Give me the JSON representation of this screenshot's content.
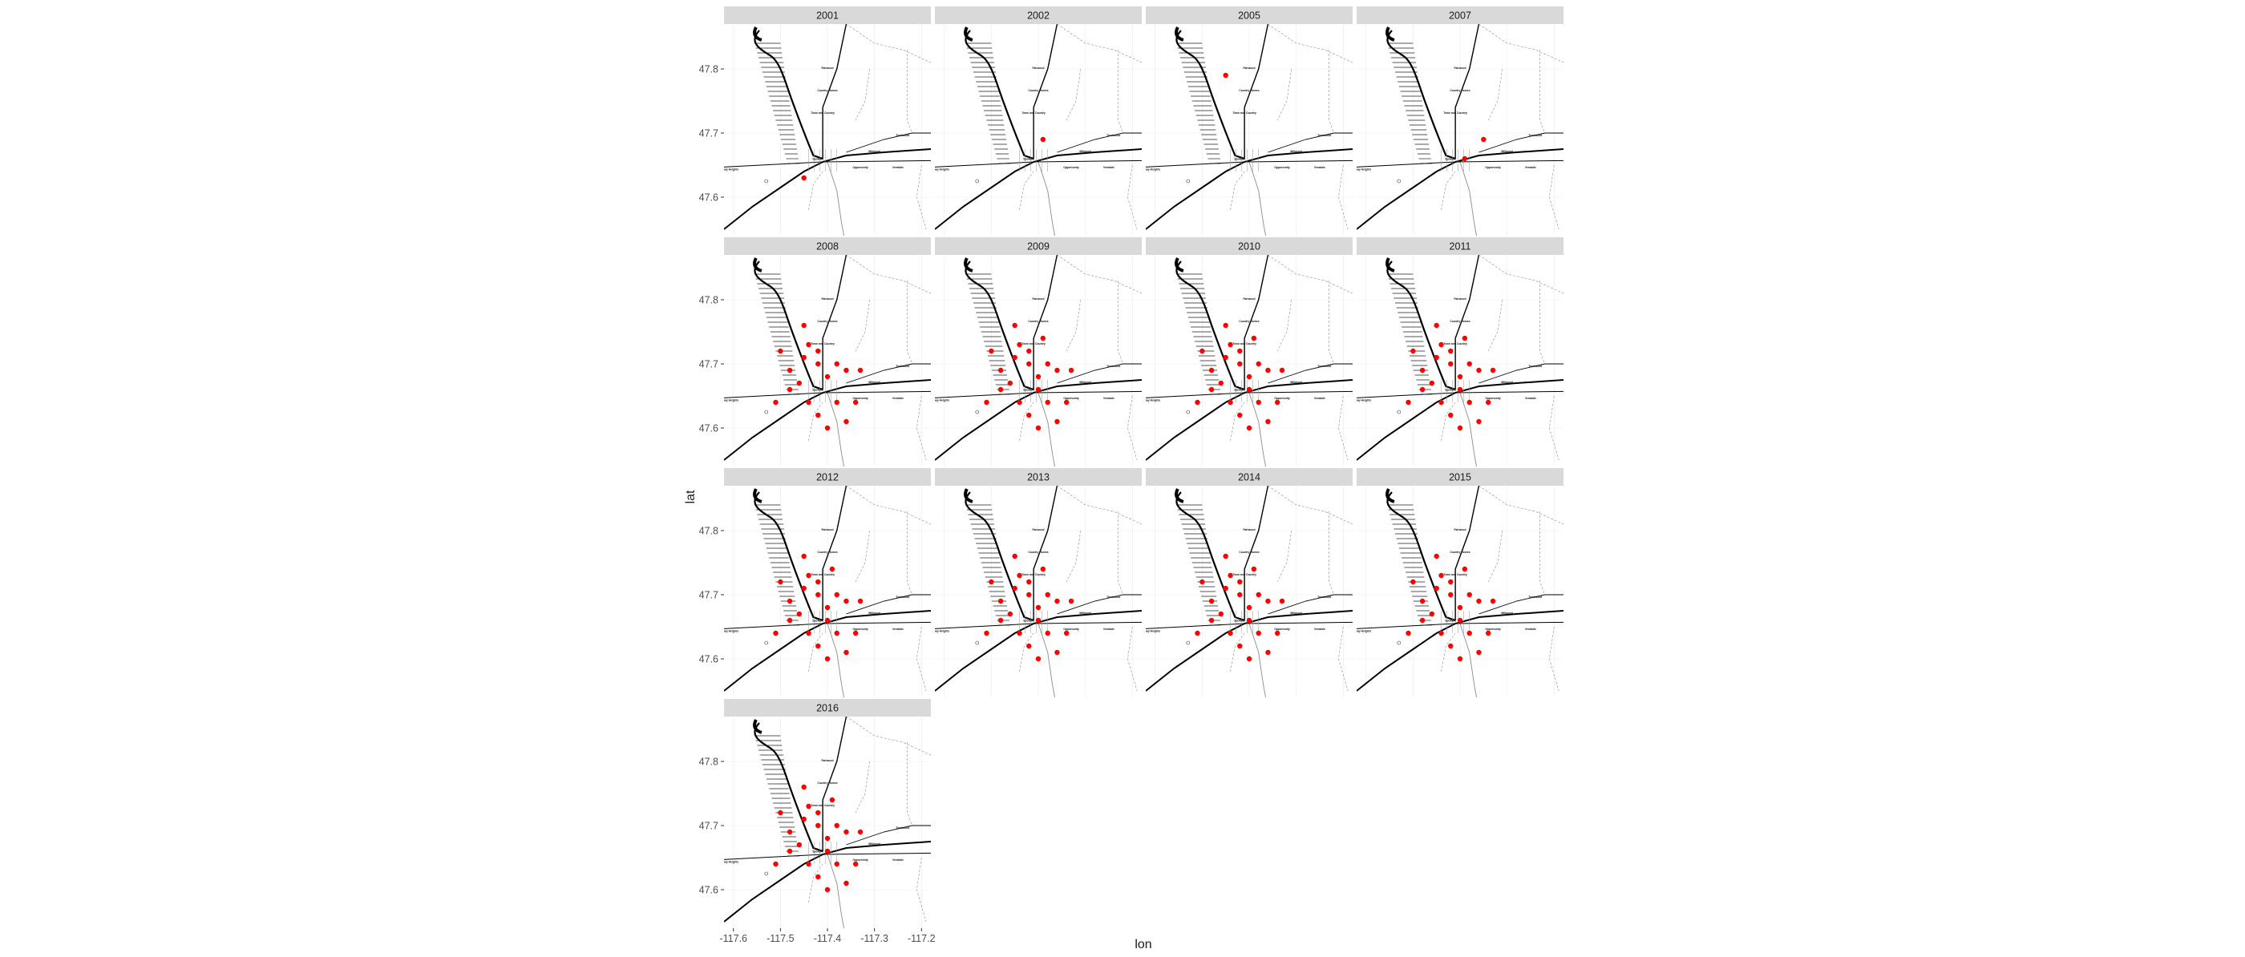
{
  "figure": {
    "xlabel": "lon",
    "ylabel": "lat",
    "x_ticks": [
      "-117.6",
      "-117.5",
      "-117.4",
      "-117.3",
      "-117.2"
    ],
    "y_ticks": [
      "47.8",
      "47.7",
      "47.6"
    ]
  },
  "colors": {
    "point": "#ff0000",
    "strip": "#d9d9d9",
    "strip_text": "#1a1a1a",
    "axis_text": "#4d4d4d",
    "road": "#000000",
    "minor_road": "#8c8c8c"
  },
  "map_labels": [
    "Fairwood",
    "Country Homes",
    "Town and Country",
    "Millwood",
    "Trentwood",
    "Spokane",
    "Opportunity",
    "Veradale",
    "Airway Heights"
  ],
  "chart_data": {
    "type": "scatter",
    "subtype": "faceted map",
    "xlabel": "lon",
    "ylabel": "lat",
    "xlim": [
      -117.62,
      -117.18
    ],
    "ylim": [
      47.54,
      47.87
    ],
    "x_ticks": [
      -117.6,
      -117.5,
      -117.4,
      -117.3,
      -117.2
    ],
    "y_ticks": [
      47.8,
      47.7,
      47.6
    ],
    "facets": [
      {
        "label": "2001",
        "points": [
          [
            -117.45,
            47.63
          ]
        ]
      },
      {
        "label": "2002",
        "points": [
          [
            -117.39,
            47.69
          ]
        ]
      },
      {
        "label": "2005",
        "points": [
          [
            -117.45,
            47.79
          ]
        ]
      },
      {
        "label": "2007",
        "points": [
          [
            -117.39,
            47.66
          ],
          [
            -117.35,
            47.69
          ]
        ]
      },
      {
        "label": "2008",
        "points": [
          [
            -117.51,
            47.64
          ],
          [
            -117.45,
            47.71
          ],
          [
            -117.42,
            47.72
          ],
          [
            -117.45,
            47.76
          ],
          [
            -117.5,
            47.72
          ],
          [
            -117.48,
            47.69
          ],
          [
            -117.46,
            47.67
          ],
          [
            -117.44,
            47.64
          ],
          [
            -117.42,
            47.7
          ],
          [
            -117.4,
            47.68
          ],
          [
            -117.38,
            47.7
          ],
          [
            -117.36,
            47.69
          ],
          [
            -117.33,
            47.69
          ],
          [
            -117.42,
            47.62
          ],
          [
            -117.38,
            47.64
          ],
          [
            -117.34,
            47.64
          ],
          [
            -117.4,
            47.6
          ],
          [
            -117.36,
            47.61
          ],
          [
            -117.48,
            47.66
          ],
          [
            -117.44,
            47.73
          ]
        ]
      },
      {
        "label": "2009",
        "points": [
          [
            -117.51,
            47.64
          ],
          [
            -117.45,
            47.71
          ],
          [
            -117.42,
            47.72
          ],
          [
            -117.45,
            47.76
          ],
          [
            -117.5,
            47.72
          ],
          [
            -117.48,
            47.69
          ],
          [
            -117.46,
            47.67
          ],
          [
            -117.44,
            47.64
          ],
          [
            -117.42,
            47.7
          ],
          [
            -117.4,
            47.68
          ],
          [
            -117.38,
            47.7
          ],
          [
            -117.36,
            47.69
          ],
          [
            -117.33,
            47.69
          ],
          [
            -117.42,
            47.62
          ],
          [
            -117.38,
            47.64
          ],
          [
            -117.34,
            47.64
          ],
          [
            -117.4,
            47.6
          ],
          [
            -117.36,
            47.61
          ],
          [
            -117.48,
            47.66
          ],
          [
            -117.44,
            47.73
          ],
          [
            -117.39,
            47.74
          ],
          [
            -117.4,
            47.66
          ]
        ]
      },
      {
        "label": "2010",
        "points": [
          [
            -117.51,
            47.64
          ],
          [
            -117.45,
            47.71
          ],
          [
            -117.42,
            47.72
          ],
          [
            -117.45,
            47.76
          ],
          [
            -117.5,
            47.72
          ],
          [
            -117.48,
            47.69
          ],
          [
            -117.46,
            47.67
          ],
          [
            -117.44,
            47.64
          ],
          [
            -117.42,
            47.7
          ],
          [
            -117.4,
            47.68
          ],
          [
            -117.38,
            47.7
          ],
          [
            -117.36,
            47.69
          ],
          [
            -117.33,
            47.69
          ],
          [
            -117.42,
            47.62
          ],
          [
            -117.38,
            47.64
          ],
          [
            -117.34,
            47.64
          ],
          [
            -117.4,
            47.6
          ],
          [
            -117.36,
            47.61
          ],
          [
            -117.48,
            47.66
          ],
          [
            -117.44,
            47.73
          ],
          [
            -117.39,
            47.74
          ],
          [
            -117.4,
            47.66
          ]
        ]
      },
      {
        "label": "2011",
        "points": [
          [
            -117.51,
            47.64
          ],
          [
            -117.45,
            47.71
          ],
          [
            -117.42,
            47.72
          ],
          [
            -117.45,
            47.76
          ],
          [
            -117.5,
            47.72
          ],
          [
            -117.48,
            47.69
          ],
          [
            -117.46,
            47.67
          ],
          [
            -117.44,
            47.64
          ],
          [
            -117.42,
            47.7
          ],
          [
            -117.4,
            47.68
          ],
          [
            -117.38,
            47.7
          ],
          [
            -117.36,
            47.69
          ],
          [
            -117.33,
            47.69
          ],
          [
            -117.42,
            47.62
          ],
          [
            -117.38,
            47.64
          ],
          [
            -117.34,
            47.64
          ],
          [
            -117.4,
            47.6
          ],
          [
            -117.36,
            47.61
          ],
          [
            -117.48,
            47.66
          ],
          [
            -117.44,
            47.73
          ],
          [
            -117.39,
            47.74
          ],
          [
            -117.4,
            47.66
          ]
        ]
      },
      {
        "label": "2012",
        "points": [
          [
            -117.51,
            47.64
          ],
          [
            -117.45,
            47.71
          ],
          [
            -117.42,
            47.72
          ],
          [
            -117.45,
            47.76
          ],
          [
            -117.5,
            47.72
          ],
          [
            -117.48,
            47.69
          ],
          [
            -117.46,
            47.67
          ],
          [
            -117.44,
            47.64
          ],
          [
            -117.42,
            47.7
          ],
          [
            -117.4,
            47.68
          ],
          [
            -117.38,
            47.7
          ],
          [
            -117.36,
            47.69
          ],
          [
            -117.33,
            47.69
          ],
          [
            -117.42,
            47.62
          ],
          [
            -117.38,
            47.64
          ],
          [
            -117.34,
            47.64
          ],
          [
            -117.4,
            47.6
          ],
          [
            -117.36,
            47.61
          ],
          [
            -117.48,
            47.66
          ],
          [
            -117.44,
            47.73
          ],
          [
            -117.39,
            47.74
          ],
          [
            -117.4,
            47.66
          ]
        ]
      },
      {
        "label": "2013",
        "points": [
          [
            -117.51,
            47.64
          ],
          [
            -117.45,
            47.71
          ],
          [
            -117.42,
            47.72
          ],
          [
            -117.45,
            47.76
          ],
          [
            -117.5,
            47.72
          ],
          [
            -117.48,
            47.69
          ],
          [
            -117.46,
            47.67
          ],
          [
            -117.44,
            47.64
          ],
          [
            -117.42,
            47.7
          ],
          [
            -117.4,
            47.68
          ],
          [
            -117.38,
            47.7
          ],
          [
            -117.36,
            47.69
          ],
          [
            -117.33,
            47.69
          ],
          [
            -117.42,
            47.62
          ],
          [
            -117.38,
            47.64
          ],
          [
            -117.34,
            47.64
          ],
          [
            -117.4,
            47.6
          ],
          [
            -117.36,
            47.61
          ],
          [
            -117.48,
            47.66
          ],
          [
            -117.44,
            47.73
          ],
          [
            -117.39,
            47.74
          ],
          [
            -117.4,
            47.66
          ]
        ]
      },
      {
        "label": "2014",
        "points": [
          [
            -117.51,
            47.64
          ],
          [
            -117.45,
            47.71
          ],
          [
            -117.42,
            47.72
          ],
          [
            -117.45,
            47.76
          ],
          [
            -117.5,
            47.72
          ],
          [
            -117.48,
            47.69
          ],
          [
            -117.46,
            47.67
          ],
          [
            -117.44,
            47.64
          ],
          [
            -117.42,
            47.7
          ],
          [
            -117.4,
            47.68
          ],
          [
            -117.38,
            47.7
          ],
          [
            -117.36,
            47.69
          ],
          [
            -117.33,
            47.69
          ],
          [
            -117.42,
            47.62
          ],
          [
            -117.38,
            47.64
          ],
          [
            -117.34,
            47.64
          ],
          [
            -117.4,
            47.6
          ],
          [
            -117.36,
            47.61
          ],
          [
            -117.48,
            47.66
          ],
          [
            -117.44,
            47.73
          ],
          [
            -117.39,
            47.74
          ],
          [
            -117.4,
            47.66
          ]
        ]
      },
      {
        "label": "2015",
        "points": [
          [
            -117.51,
            47.64
          ],
          [
            -117.45,
            47.71
          ],
          [
            -117.42,
            47.72
          ],
          [
            -117.45,
            47.76
          ],
          [
            -117.5,
            47.72
          ],
          [
            -117.48,
            47.69
          ],
          [
            -117.46,
            47.67
          ],
          [
            -117.44,
            47.64
          ],
          [
            -117.42,
            47.7
          ],
          [
            -117.4,
            47.68
          ],
          [
            -117.38,
            47.7
          ],
          [
            -117.36,
            47.69
          ],
          [
            -117.33,
            47.69
          ],
          [
            -117.42,
            47.62
          ],
          [
            -117.38,
            47.64
          ],
          [
            -117.34,
            47.64
          ],
          [
            -117.4,
            47.6
          ],
          [
            -117.36,
            47.61
          ],
          [
            -117.48,
            47.66
          ],
          [
            -117.44,
            47.73
          ],
          [
            -117.39,
            47.74
          ],
          [
            -117.4,
            47.66
          ]
        ]
      },
      {
        "label": "2016",
        "points": [
          [
            -117.51,
            47.64
          ],
          [
            -117.45,
            47.71
          ],
          [
            -117.42,
            47.72
          ],
          [
            -117.45,
            47.76
          ],
          [
            -117.5,
            47.72
          ],
          [
            -117.48,
            47.69
          ],
          [
            -117.46,
            47.67
          ],
          [
            -117.44,
            47.64
          ],
          [
            -117.42,
            47.7
          ],
          [
            -117.4,
            47.68
          ],
          [
            -117.38,
            47.7
          ],
          [
            -117.36,
            47.69
          ],
          [
            -117.33,
            47.69
          ],
          [
            -117.42,
            47.62
          ],
          [
            -117.38,
            47.64
          ],
          [
            -117.34,
            47.64
          ],
          [
            -117.4,
            47.6
          ],
          [
            -117.36,
            47.61
          ],
          [
            -117.48,
            47.66
          ],
          [
            -117.44,
            47.73
          ],
          [
            -117.39,
            47.74
          ],
          [
            -117.4,
            47.66
          ]
        ]
      }
    ]
  }
}
